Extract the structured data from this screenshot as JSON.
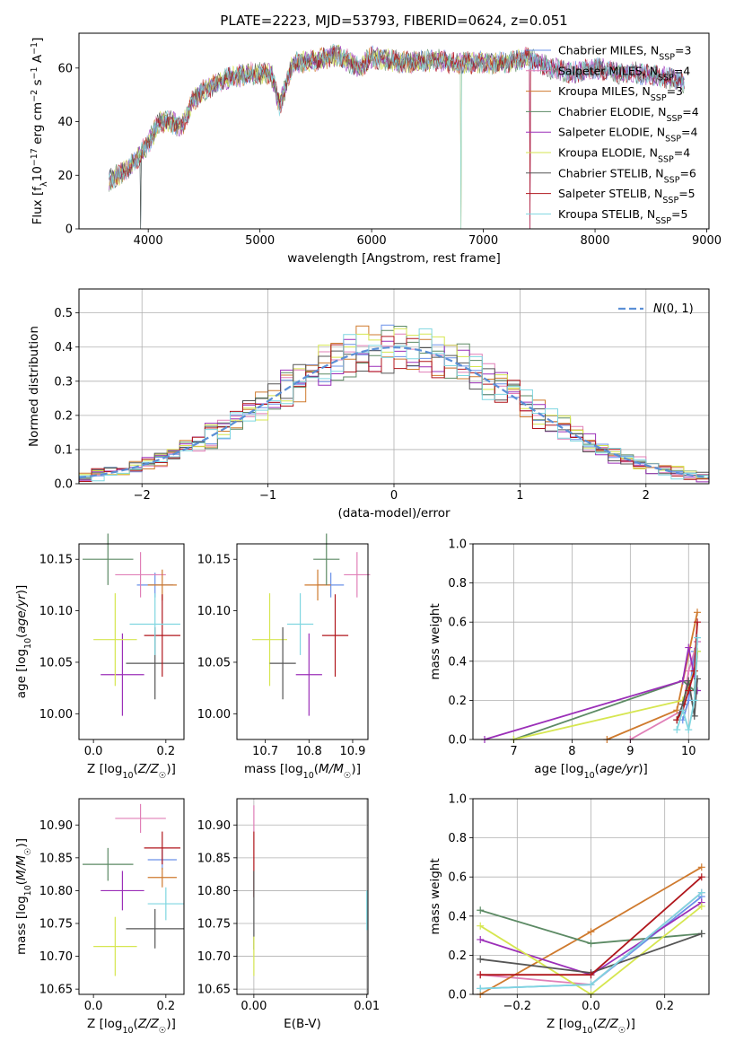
{
  "figure": {
    "title": "PLATE=2223, MJD=53793, FIBERID=0624, z=0.051"
  },
  "series_styles": [
    {
      "name": "Chabrier MILES",
      "nssp": "3",
      "color": "#6a90e8"
    },
    {
      "name": "Salpeter MILES",
      "nssp": "4",
      "color": "#e07fb7"
    },
    {
      "name": "Kroupa MILES",
      "nssp": "3",
      "color": "#cf7a2e"
    },
    {
      "name": "Chabrier ELODIE",
      "nssp": "4",
      "color": "#5c8a64"
    },
    {
      "name": "Salpeter ELODIE",
      "nssp": "4",
      "color": "#9b2fb8"
    },
    {
      "name": "Kroupa ELODIE",
      "nssp": "4",
      "color": "#d6e650"
    },
    {
      "name": "Chabrier STELIB",
      "nssp": "6",
      "color": "#555555"
    },
    {
      "name": "Salpeter STELIB",
      "nssp": "5",
      "color": "#b0161c"
    },
    {
      "name": "Kroupa STELIB",
      "nssp": "5",
      "color": "#7fd6e0"
    }
  ],
  "legend_nssp_label": "N",
  "legend_nssp_sub": "SSP",
  "chart_data": [
    {
      "id": "spectrum",
      "type": "line",
      "xlabel": "wavelength [Angstrom, rest frame]",
      "ylabel": "Flux [f_λ 10^-17 erg cm^-2 s^-1 A^-1]",
      "xlim": [
        3380,
        9020
      ],
      "ylim": [
        0,
        73
      ],
      "xticks": [
        4000,
        5000,
        6000,
        7000,
        8000,
        9000
      ],
      "yticks": [
        0,
        20,
        40,
        60
      ],
      "legend": "top-right",
      "anchor_points": [
        [
          3650,
          18
        ],
        [
          3800,
          22
        ],
        [
          3900,
          26
        ],
        [
          4000,
          32
        ],
        [
          4100,
          40
        ],
        [
          4200,
          40
        ],
        [
          4300,
          38
        ],
        [
          4400,
          48
        ],
        [
          4500,
          52
        ],
        [
          4700,
          56
        ],
        [
          4900,
          58
        ],
        [
          5100,
          58
        ],
        [
          5175,
          46
        ],
        [
          5300,
          62
        ],
        [
          5500,
          63
        ],
        [
          5700,
          65
        ],
        [
          5890,
          60
        ],
        [
          6000,
          64
        ],
        [
          6300,
          62
        ],
        [
          6563,
          63
        ],
        [
          6800,
          62
        ],
        [
          7000,
          62
        ],
        [
          7200,
          62
        ],
        [
          7400,
          64
        ],
        [
          7600,
          60
        ],
        [
          7800,
          58
        ],
        [
          8000,
          60
        ],
        [
          8200,
          58
        ],
        [
          8400,
          58
        ],
        [
          8600,
          57
        ],
        [
          8800,
          55
        ]
      ],
      "dips": [
        [
          3933,
          0
        ],
        [
          6800,
          0
        ],
        [
          7420,
          0
        ]
      ]
    },
    {
      "id": "residuals",
      "type": "step-histogram",
      "xlabel": "(data-model)/error",
      "ylabel": "Normed distribution",
      "xlim": [
        -2.5,
        2.5
      ],
      "ylim": [
        0,
        0.57
      ],
      "xticks": [
        -2,
        -1,
        0,
        1,
        2
      ],
      "yticks": [
        0.0,
        0.1,
        0.2,
        0.3,
        0.4,
        0.5
      ],
      "grid": true,
      "legend": "top-right",
      "legend_label": "N(0,1)",
      "bin_width": 0.1,
      "reference": "normal(0,1)"
    },
    {
      "id": "age_vs_Z",
      "type": "errorbar",
      "xlabel": "Z [log10(Z/Z☉)]",
      "ylabel": "age  [log10(age/yr)]",
      "xlim": [
        -0.04,
        0.25
      ],
      "ylim": [
        9.975,
        10.165
      ],
      "xticks": [
        0.0,
        0.2
      ],
      "yticks": [
        10.0,
        10.05,
        10.1,
        10.15
      ],
      "points": [
        {
          "x": 0.17,
          "y": 10.125,
          "xerr": 0.05,
          "yerr": 0.012,
          "series": 0
        },
        {
          "x": 0.13,
          "y": 10.135,
          "xerr": 0.07,
          "yerr": 0.022,
          "series": 1
        },
        {
          "x": 0.19,
          "y": 10.125,
          "xerr": 0.04,
          "yerr": 0.015,
          "series": 2
        },
        {
          "x": 0.04,
          "y": 10.15,
          "xerr": 0.07,
          "yerr": 0.025,
          "series": 3
        },
        {
          "x": 0.08,
          "y": 10.038,
          "xerr": 0.06,
          "yerr": 0.04,
          "series": 4
        },
        {
          "x": 0.06,
          "y": 10.072,
          "xerr": 0.06,
          "yerr": 0.045,
          "series": 5
        },
        {
          "x": 0.17,
          "y": 10.049,
          "xerr": 0.08,
          "yerr": 0.035,
          "series": 6
        },
        {
          "x": 0.19,
          "y": 10.076,
          "xerr": 0.05,
          "yerr": 0.04,
          "series": 7
        },
        {
          "x": 0.17,
          "y": 10.087,
          "xerr": 0.07,
          "yerr": 0.03,
          "series": 8
        }
      ]
    },
    {
      "id": "age_vs_mass",
      "type": "errorbar",
      "xlabel": "mass [log10(M/M☉)]",
      "ylabel": "",
      "xlim": [
        10.635,
        10.935
      ],
      "ylim": [
        9.975,
        10.165
      ],
      "xticks": [
        10.7,
        10.8,
        10.9
      ],
      "yticks": [
        10.0,
        10.05,
        10.1,
        10.15
      ],
      "points": [
        {
          "x": 10.85,
          "y": 10.125,
          "xerr": 0.03,
          "yerr": 0.012,
          "series": 0
        },
        {
          "x": 10.91,
          "y": 10.135,
          "xerr": 0.03,
          "yerr": 0.022,
          "series": 1
        },
        {
          "x": 10.82,
          "y": 10.125,
          "xerr": 0.03,
          "yerr": 0.015,
          "series": 2
        },
        {
          "x": 10.84,
          "y": 10.15,
          "xerr": 0.03,
          "yerr": 0.025,
          "series": 3
        },
        {
          "x": 10.8,
          "y": 10.038,
          "xerr": 0.03,
          "yerr": 0.04,
          "series": 4
        },
        {
          "x": 10.71,
          "y": 10.072,
          "xerr": 0.04,
          "yerr": 0.045,
          "series": 5
        },
        {
          "x": 10.74,
          "y": 10.049,
          "xerr": 0.03,
          "yerr": 0.035,
          "series": 6
        },
        {
          "x": 10.86,
          "y": 10.076,
          "xerr": 0.03,
          "yerr": 0.04,
          "series": 7
        },
        {
          "x": 10.78,
          "y": 10.087,
          "xerr": 0.03,
          "yerr": 0.03,
          "series": 8
        }
      ]
    },
    {
      "id": "weight_vs_age",
      "type": "line",
      "xlabel": "age  [log10(age/yr)]",
      "ylabel": "mass weight",
      "xlim": [
        6.3,
        10.35
      ],
      "ylim": [
        0,
        1.0
      ],
      "xticks": [
        7,
        8,
        9,
        10
      ],
      "yticks": [
        0.0,
        0.2,
        0.4,
        0.6,
        0.8,
        1.0
      ],
      "grid": true,
      "series": [
        {
          "series": 0,
          "x": [
            9.9,
            10.0,
            10.1,
            10.15
          ],
          "y": [
            0.1,
            0.2,
            0.45,
            0.5
          ]
        },
        {
          "series": 1,
          "x": [
            9.0,
            9.9,
            10.0,
            10.15
          ],
          "y": [
            0.0,
            0.15,
            0.35,
            0.5
          ]
        },
        {
          "series": 2,
          "x": [
            8.6,
            9.8,
            10.15
          ],
          "y": [
            0.0,
            0.15,
            0.65
          ]
        },
        {
          "series": 3,
          "x": [
            7.0,
            9.9,
            10.1,
            10.15
          ],
          "y": [
            0.0,
            0.3,
            0.25,
            0.45
          ]
        },
        {
          "series": 4,
          "x": [
            6.5,
            9.9,
            10.0,
            10.15
          ],
          "y": [
            0.0,
            0.3,
            0.47,
            0.25
          ]
        },
        {
          "series": 5,
          "x": [
            7.0,
            9.9,
            10.1,
            10.15
          ],
          "y": [
            0.0,
            0.2,
            0.35,
            0.45
          ]
        },
        {
          "series": 6,
          "x": [
            9.8,
            9.9,
            10.0,
            10.1,
            10.15
          ],
          "y": [
            0.1,
            0.18,
            0.3,
            0.12,
            0.31
          ]
        },
        {
          "series": 7,
          "x": [
            9.8,
            9.9,
            10.0,
            10.1,
            10.15
          ],
          "y": [
            0.1,
            0.15,
            0.25,
            0.35,
            0.6
          ]
        },
        {
          "series": 8,
          "x": [
            9.8,
            9.9,
            10.0,
            10.1,
            10.15
          ],
          "y": [
            0.05,
            0.15,
            0.05,
            0.2,
            0.52
          ]
        }
      ]
    },
    {
      "id": "mass_vs_Z",
      "type": "errorbar",
      "xlabel": "Z [log10(Z/Z☉)]",
      "ylabel": "mass [log10(M/M☉)]",
      "xlim": [
        -0.04,
        0.25
      ],
      "ylim": [
        10.642,
        10.94
      ],
      "xticks": [
        0.0,
        0.2
      ],
      "yticks": [
        10.65,
        10.7,
        10.75,
        10.8,
        10.85,
        10.9
      ],
      "points": [
        {
          "x": 0.19,
          "y": 10.847,
          "xerr": 0.04,
          "yerr": 0.015,
          "series": 0
        },
        {
          "x": 0.13,
          "y": 10.91,
          "xerr": 0.07,
          "yerr": 0.022,
          "series": 1
        },
        {
          "x": 0.19,
          "y": 10.82,
          "xerr": 0.04,
          "yerr": 0.015,
          "series": 2
        },
        {
          "x": 0.04,
          "y": 10.84,
          "xerr": 0.07,
          "yerr": 0.025,
          "series": 3
        },
        {
          "x": 0.08,
          "y": 10.8,
          "xerr": 0.06,
          "yerr": 0.03,
          "series": 4
        },
        {
          "x": 0.06,
          "y": 10.715,
          "xerr": 0.06,
          "yerr": 0.045,
          "series": 5
        },
        {
          "x": 0.17,
          "y": 10.742,
          "xerr": 0.08,
          "yerr": 0.03,
          "series": 6
        },
        {
          "x": 0.19,
          "y": 10.865,
          "xerr": 0.05,
          "yerr": 0.025,
          "series": 7
        },
        {
          "x": 0.2,
          "y": 10.78,
          "xerr": 0.05,
          "yerr": 0.025,
          "series": 8
        }
      ]
    },
    {
      "id": "mass_vs_EBV",
      "type": "errorbar",
      "xlabel": "E(B-V)",
      "ylabel": "",
      "xlim": [
        -0.0015,
        0.0101
      ],
      "ylim": [
        10.642,
        10.94
      ],
      "xticks": [
        0.0,
        0.01
      ],
      "xtick_labels": [
        "0.00",
        "0.01"
      ],
      "yticks": [
        10.65,
        10.7,
        10.75,
        10.8,
        10.85,
        10.9
      ],
      "grid": true,
      "points": [
        {
          "x": 0.0,
          "y": 10.91,
          "xerr": 0,
          "yerr": 0.02,
          "series": 1
        },
        {
          "x": 0.0,
          "y": 10.84,
          "xerr": 0,
          "yerr": 0.05,
          "series": 7
        },
        {
          "x": 0.0,
          "y": 10.77,
          "xerr": 0,
          "yerr": 0.06,
          "series": 6
        },
        {
          "x": 0.0,
          "y": 10.7,
          "xerr": 0,
          "yerr": 0.03,
          "series": 5
        },
        {
          "x": 0.01,
          "y": 10.77,
          "xerr": 0,
          "yerr": 0.03,
          "series": 8
        }
      ]
    },
    {
      "id": "weight_vs_Z",
      "type": "line",
      "xlabel": "Z [log10(Z/Z☉)]",
      "ylabel": "mass weight",
      "xlim": [
        -0.32,
        0.32
      ],
      "ylim": [
        0,
        1.0
      ],
      "xticks": [
        -0.2,
        0.0,
        0.2
      ],
      "xtick_labels": [
        "−0.2",
        "0.0",
        "0.2"
      ],
      "yticks": [
        0.0,
        0.2,
        0.4,
        0.6,
        0.8,
        1.0
      ],
      "grid": true,
      "series": [
        {
          "series": 0,
          "x": [
            -0.3,
            0.0,
            0.3
          ],
          "y": [
            0.03,
            0.05,
            0.5
          ]
        },
        {
          "series": 1,
          "x": [
            -0.3,
            0.0,
            0.3
          ],
          "y": [
            0.1,
            0.05,
            0.52
          ]
        },
        {
          "series": 2,
          "x": [
            -0.3,
            0.0,
            0.3
          ],
          "y": [
            0.0,
            0.32,
            0.65
          ]
        },
        {
          "series": 3,
          "x": [
            -0.3,
            0.0,
            0.3
          ],
          "y": [
            0.43,
            0.26,
            0.31
          ]
        },
        {
          "series": 4,
          "x": [
            -0.3,
            0.0,
            0.3
          ],
          "y": [
            0.28,
            0.1,
            0.47
          ]
        },
        {
          "series": 5,
          "x": [
            -0.3,
            0.0,
            0.3
          ],
          "y": [
            0.35,
            0.0,
            0.45
          ]
        },
        {
          "series": 6,
          "x": [
            -0.3,
            0.0,
            0.3
          ],
          "y": [
            0.18,
            0.11,
            0.31
          ]
        },
        {
          "series": 7,
          "x": [
            -0.3,
            0.0,
            0.3
          ],
          "y": [
            0.1,
            0.1,
            0.6
          ]
        },
        {
          "series": 8,
          "x": [
            -0.3,
            0.0,
            0.3
          ],
          "y": [
            0.03,
            0.05,
            0.52
          ]
        }
      ]
    }
  ]
}
